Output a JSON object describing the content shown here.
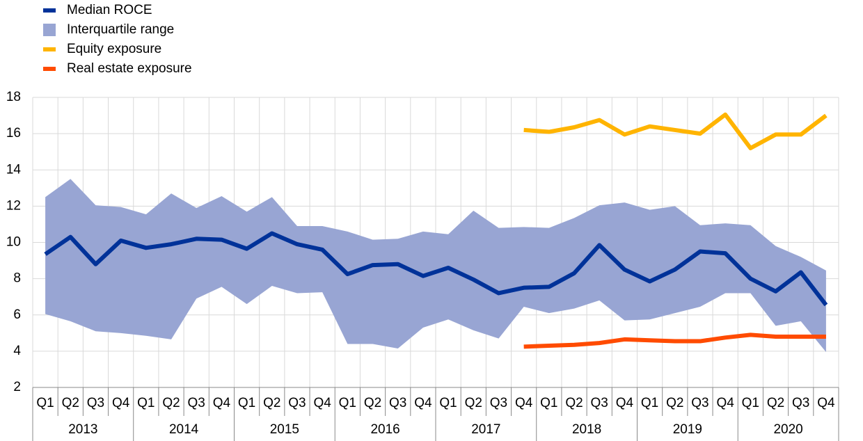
{
  "chart_data": {
    "type": "line",
    "categories": [
      "Q1",
      "Q2",
      "Q3",
      "Q4",
      "Q1",
      "Q2",
      "Q3",
      "Q4",
      "Q1",
      "Q2",
      "Q3",
      "Q4",
      "Q1",
      "Q2",
      "Q3",
      "Q4",
      "Q1",
      "Q2",
      "Q3",
      "Q4",
      "Q1",
      "Q2",
      "Q3",
      "Q4",
      "Q1",
      "Q2",
      "Q3",
      "Q4",
      "Q1",
      "Q2",
      "Q3",
      "Q4"
    ],
    "years": [
      "2013",
      "2014",
      "2015",
      "2016",
      "2017",
      "2018",
      "2019",
      "2020"
    ],
    "series": [
      {
        "name": "Median ROCE",
        "color": "#003299",
        "values": [
          9.35,
          10.3,
          8.8,
          10.1,
          9.7,
          9.9,
          10.2,
          10.15,
          9.65,
          10.5,
          9.9,
          9.6,
          8.25,
          8.75,
          8.8,
          8.15,
          8.6,
          7.95,
          7.2,
          7.5,
          7.55,
          8.3,
          9.85,
          8.5,
          7.85,
          8.5,
          9.5,
          9.4,
          8.0,
          7.3,
          8.35,
          6.55
        ]
      },
      {
        "name": "Interquartile range",
        "color": "#98a5d3",
        "upper": [
          12.5,
          13.5,
          12.05,
          11.95,
          11.55,
          12.7,
          11.9,
          12.55,
          11.7,
          12.5,
          10.9,
          10.9,
          10.6,
          10.15,
          10.2,
          10.6,
          10.45,
          11.75,
          10.8,
          10.85,
          10.8,
          11.35,
          12.05,
          12.2,
          11.8,
          12.0,
          10.95,
          11.05,
          10.95,
          9.8,
          9.2,
          8.45
        ],
        "lower": [
          6.05,
          5.65,
          5.1,
          5.0,
          4.85,
          4.65,
          6.9,
          7.55,
          6.6,
          7.6,
          7.2,
          7.25,
          4.4,
          4.4,
          4.15,
          5.3,
          5.75,
          5.15,
          4.7,
          6.45,
          6.1,
          6.35,
          6.8,
          5.7,
          5.75,
          6.1,
          6.45,
          7.2,
          7.2,
          5.4,
          5.65,
          3.95
        ]
      },
      {
        "name": "Equity exposure",
        "color": "#ffb400",
        "values": [
          null,
          null,
          null,
          null,
          null,
          null,
          null,
          null,
          null,
          null,
          null,
          null,
          null,
          null,
          null,
          null,
          null,
          null,
          null,
          16.2,
          16.1,
          16.35,
          16.75,
          15.95,
          16.4,
          16.2,
          16.0,
          17.05,
          15.2,
          15.95,
          15.95,
          17.0
        ]
      },
      {
        "name": "Real estate exposure",
        "color": "#ff4b00",
        "values": [
          null,
          null,
          null,
          null,
          null,
          null,
          null,
          null,
          null,
          null,
          null,
          null,
          null,
          null,
          null,
          null,
          null,
          null,
          null,
          4.25,
          4.3,
          4.35,
          4.45,
          4.65,
          4.6,
          4.55,
          4.55,
          4.75,
          4.9,
          4.8,
          4.8,
          4.8
        ]
      }
    ],
    "ylim": [
      2,
      18
    ],
    "yticks": [
      2,
      4,
      6,
      8,
      10,
      12,
      14,
      16,
      18
    ],
    "grid": true
  }
}
